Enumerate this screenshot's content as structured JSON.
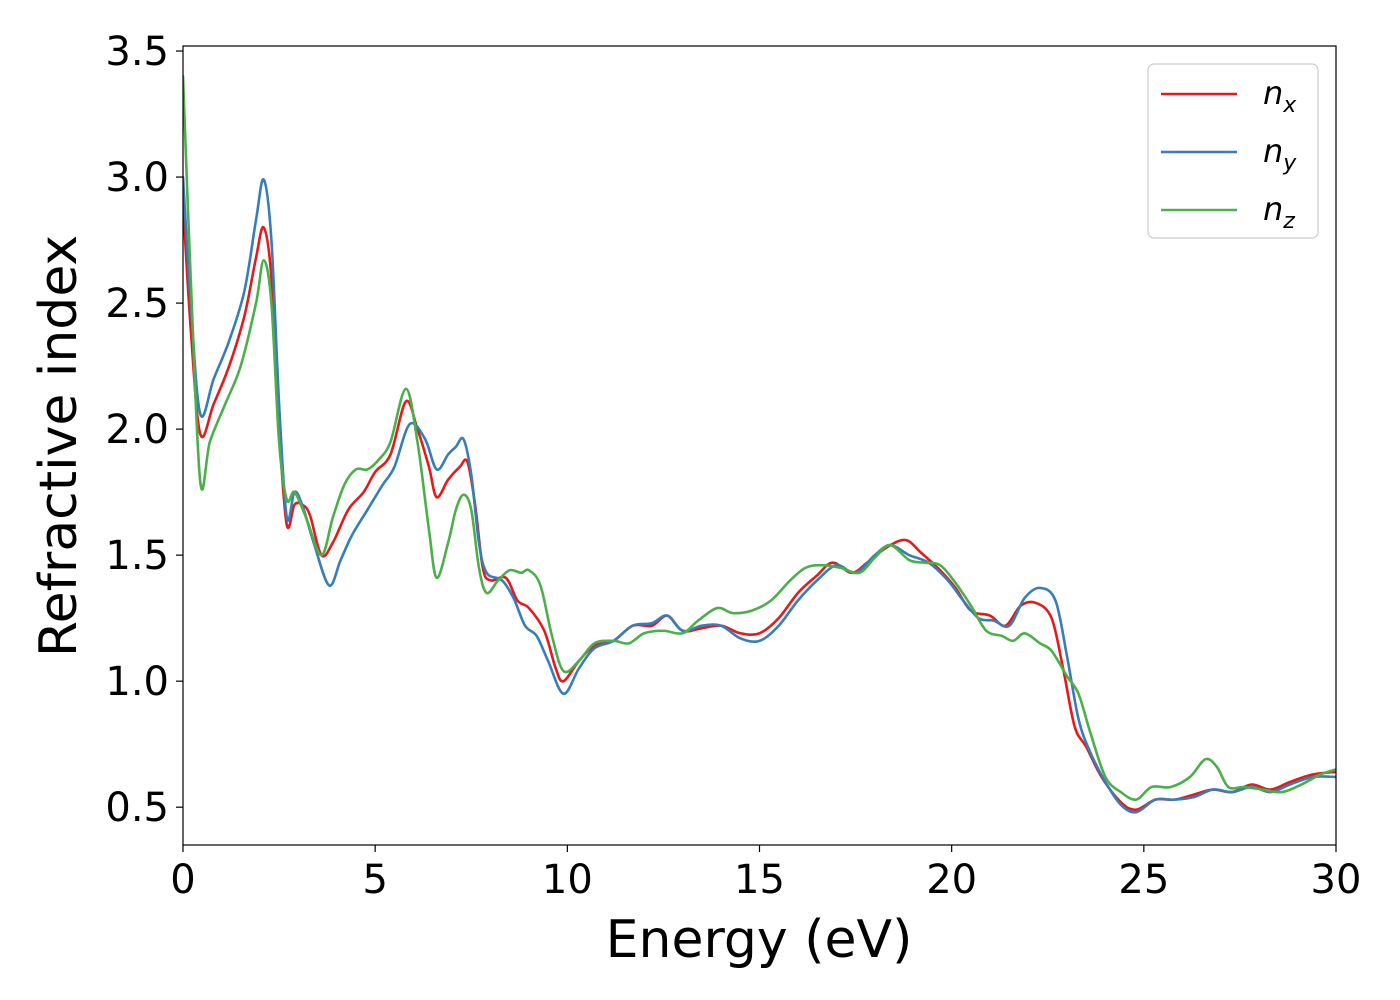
{
  "chart_data": {
    "type": "line",
    "xlabel": "Energy (eV)",
    "ylabel": "Refractive index",
    "xlim": [
      0,
      30
    ],
    "ylim": [
      0.35,
      3.52
    ],
    "xticks": [
      "0",
      "5",
      "10",
      "15",
      "20",
      "25",
      "30"
    ],
    "yticks": [
      "0.5",
      "1.0",
      "1.5",
      "2.0",
      "2.5",
      "3.0",
      "3.5"
    ],
    "grid": false,
    "legend_position": "top-right",
    "series": [
      {
        "name": "n_x",
        "label_main": "n",
        "label_sub": "x",
        "color": "#e41a1c",
        "points": [
          [
            0,
            2.9
          ],
          [
            0.2,
            2.4
          ],
          [
            0.45,
            1.98
          ],
          [
            0.8,
            2.1
          ],
          [
            1.2,
            2.25
          ],
          [
            1.6,
            2.45
          ],
          [
            1.9,
            2.68
          ],
          [
            2.1,
            2.8
          ],
          [
            2.3,
            2.6
          ],
          [
            2.5,
            2.0
          ],
          [
            2.7,
            1.62
          ],
          [
            2.9,
            1.7
          ],
          [
            3.1,
            1.7
          ],
          [
            3.3,
            1.66
          ],
          [
            3.6,
            1.5
          ],
          [
            3.9,
            1.55
          ],
          [
            4.3,
            1.68
          ],
          [
            4.7,
            1.75
          ],
          [
            5.0,
            1.83
          ],
          [
            5.4,
            1.9
          ],
          [
            5.8,
            2.11
          ],
          [
            6.1,
            2.0
          ],
          [
            6.4,
            1.85
          ],
          [
            6.6,
            1.73
          ],
          [
            6.9,
            1.8
          ],
          [
            7.2,
            1.85
          ],
          [
            7.4,
            1.87
          ],
          [
            7.6,
            1.7
          ],
          [
            7.8,
            1.45
          ],
          [
            8.0,
            1.4
          ],
          [
            8.4,
            1.41
          ],
          [
            8.7,
            1.32
          ],
          [
            9.0,
            1.29
          ],
          [
            9.4,
            1.2
          ],
          [
            9.7,
            1.05
          ],
          [
            9.9,
            1.0
          ],
          [
            10.3,
            1.08
          ],
          [
            10.7,
            1.14
          ],
          [
            11.2,
            1.16
          ],
          [
            11.7,
            1.22
          ],
          [
            12.2,
            1.22
          ],
          [
            12.6,
            1.26
          ],
          [
            13.0,
            1.2
          ],
          [
            13.5,
            1.21
          ],
          [
            14.0,
            1.22
          ],
          [
            14.5,
            1.19
          ],
          [
            15.0,
            1.19
          ],
          [
            15.5,
            1.25
          ],
          [
            16.0,
            1.35
          ],
          [
            16.5,
            1.42
          ],
          [
            16.9,
            1.47
          ],
          [
            17.4,
            1.43
          ],
          [
            17.8,
            1.47
          ],
          [
            18.3,
            1.53
          ],
          [
            18.8,
            1.56
          ],
          [
            19.2,
            1.51
          ],
          [
            19.7,
            1.44
          ],
          [
            20.1,
            1.37
          ],
          [
            20.5,
            1.28
          ],
          [
            21.0,
            1.26
          ],
          [
            21.4,
            1.22
          ],
          [
            21.8,
            1.3
          ],
          [
            22.2,
            1.31
          ],
          [
            22.6,
            1.25
          ],
          [
            22.9,
            1.05
          ],
          [
            23.2,
            0.82
          ],
          [
            23.5,
            0.74
          ],
          [
            23.9,
            0.62
          ],
          [
            24.4,
            0.52
          ],
          [
            24.8,
            0.49
          ],
          [
            25.3,
            0.53
          ],
          [
            25.8,
            0.53
          ],
          [
            26.3,
            0.55
          ],
          [
            26.8,
            0.57
          ],
          [
            27.3,
            0.56
          ],
          [
            27.8,
            0.59
          ],
          [
            28.3,
            0.57
          ],
          [
            28.8,
            0.6
          ],
          [
            29.4,
            0.63
          ],
          [
            30,
            0.64
          ]
        ]
      },
      {
        "name": "n_y",
        "label_main": "n",
        "label_sub": "y",
        "color": "#377eb8",
        "points": [
          [
            0,
            3.0
          ],
          [
            0.2,
            2.5
          ],
          [
            0.45,
            2.06
          ],
          [
            0.8,
            2.2
          ],
          [
            1.2,
            2.35
          ],
          [
            1.6,
            2.55
          ],
          [
            1.9,
            2.83
          ],
          [
            2.1,
            2.99
          ],
          [
            2.3,
            2.75
          ],
          [
            2.5,
            2.1
          ],
          [
            2.7,
            1.65
          ],
          [
            2.9,
            1.75
          ],
          [
            3.1,
            1.7
          ],
          [
            3.4,
            1.55
          ],
          [
            3.8,
            1.38
          ],
          [
            4.1,
            1.48
          ],
          [
            4.4,
            1.58
          ],
          [
            4.8,
            1.68
          ],
          [
            5.2,
            1.78
          ],
          [
            5.5,
            1.85
          ],
          [
            5.9,
            2.02
          ],
          [
            6.3,
            1.96
          ],
          [
            6.6,
            1.84
          ],
          [
            6.9,
            1.9
          ],
          [
            7.1,
            1.93
          ],
          [
            7.3,
            1.96
          ],
          [
            7.5,
            1.82
          ],
          [
            7.7,
            1.55
          ],
          [
            7.9,
            1.43
          ],
          [
            8.3,
            1.4
          ],
          [
            8.6,
            1.33
          ],
          [
            8.9,
            1.22
          ],
          [
            9.2,
            1.18
          ],
          [
            9.5,
            1.08
          ],
          [
            9.9,
            0.95
          ],
          [
            10.3,
            1.05
          ],
          [
            10.7,
            1.13
          ],
          [
            11.2,
            1.16
          ],
          [
            11.7,
            1.22
          ],
          [
            12.2,
            1.23
          ],
          [
            12.6,
            1.26
          ],
          [
            13.0,
            1.2
          ],
          [
            13.5,
            1.22
          ],
          [
            14.0,
            1.22
          ],
          [
            14.5,
            1.17
          ],
          [
            15.0,
            1.16
          ],
          [
            15.5,
            1.22
          ],
          [
            16.0,
            1.32
          ],
          [
            16.5,
            1.4
          ],
          [
            17.0,
            1.46
          ],
          [
            17.5,
            1.43
          ],
          [
            18.0,
            1.5
          ],
          [
            18.4,
            1.54
          ],
          [
            18.9,
            1.5
          ],
          [
            19.4,
            1.47
          ],
          [
            19.9,
            1.4
          ],
          [
            20.3,
            1.32
          ],
          [
            20.7,
            1.25
          ],
          [
            21.1,
            1.24
          ],
          [
            21.5,
            1.22
          ],
          [
            21.9,
            1.33
          ],
          [
            22.3,
            1.37
          ],
          [
            22.7,
            1.32
          ],
          [
            23.0,
            1.1
          ],
          [
            23.3,
            0.85
          ],
          [
            23.6,
            0.72
          ],
          [
            24.0,
            0.6
          ],
          [
            24.4,
            0.51
          ],
          [
            24.8,
            0.48
          ],
          [
            25.3,
            0.53
          ],
          [
            25.8,
            0.53
          ],
          [
            26.3,
            0.54
          ],
          [
            26.8,
            0.57
          ],
          [
            27.3,
            0.56
          ],
          [
            27.8,
            0.58
          ],
          [
            28.3,
            0.56
          ],
          [
            28.8,
            0.59
          ],
          [
            29.4,
            0.62
          ],
          [
            30,
            0.62
          ]
        ]
      },
      {
        "name": "n_z",
        "label_main": "n",
        "label_sub": "z",
        "color": "#4daf4a",
        "points": [
          [
            0,
            3.4
          ],
          [
            0.2,
            2.6
          ],
          [
            0.45,
            1.79
          ],
          [
            0.7,
            1.95
          ],
          [
            1.1,
            2.1
          ],
          [
            1.5,
            2.25
          ],
          [
            1.9,
            2.5
          ],
          [
            2.1,
            2.67
          ],
          [
            2.3,
            2.5
          ],
          [
            2.5,
            1.95
          ],
          [
            2.7,
            1.72
          ],
          [
            2.9,
            1.75
          ],
          [
            3.2,
            1.65
          ],
          [
            3.6,
            1.5
          ],
          [
            3.9,
            1.65
          ],
          [
            4.2,
            1.78
          ],
          [
            4.5,
            1.84
          ],
          [
            4.8,
            1.84
          ],
          [
            5.1,
            1.88
          ],
          [
            5.4,
            1.95
          ],
          [
            5.8,
            2.16
          ],
          [
            6.1,
            1.95
          ],
          [
            6.4,
            1.6
          ],
          [
            6.6,
            1.41
          ],
          [
            6.9,
            1.55
          ],
          [
            7.1,
            1.68
          ],
          [
            7.3,
            1.74
          ],
          [
            7.5,
            1.68
          ],
          [
            7.7,
            1.45
          ],
          [
            7.9,
            1.35
          ],
          [
            8.2,
            1.4
          ],
          [
            8.5,
            1.44
          ],
          [
            8.8,
            1.43
          ],
          [
            9.0,
            1.44
          ],
          [
            9.3,
            1.38
          ],
          [
            9.6,
            1.18
          ],
          [
            9.9,
            1.04
          ],
          [
            10.3,
            1.08
          ],
          [
            10.7,
            1.15
          ],
          [
            11.2,
            1.16
          ],
          [
            11.6,
            1.15
          ],
          [
            12.0,
            1.19
          ],
          [
            12.5,
            1.2
          ],
          [
            13.0,
            1.19
          ],
          [
            13.4,
            1.24
          ],
          [
            13.9,
            1.29
          ],
          [
            14.3,
            1.27
          ],
          [
            14.8,
            1.28
          ],
          [
            15.3,
            1.32
          ],
          [
            15.8,
            1.4
          ],
          [
            16.2,
            1.45
          ],
          [
            16.6,
            1.46
          ],
          [
            17.1,
            1.45
          ],
          [
            17.6,
            1.43
          ],
          [
            18.0,
            1.49
          ],
          [
            18.4,
            1.54
          ],
          [
            18.9,
            1.48
          ],
          [
            19.3,
            1.47
          ],
          [
            19.7,
            1.46
          ],
          [
            20.1,
            1.39
          ],
          [
            20.5,
            1.3
          ],
          [
            20.9,
            1.2
          ],
          [
            21.3,
            1.18
          ],
          [
            21.6,
            1.16
          ],
          [
            21.9,
            1.19
          ],
          [
            22.3,
            1.15
          ],
          [
            22.6,
            1.12
          ],
          [
            23.0,
            1.02
          ],
          [
            23.3,
            0.95
          ],
          [
            23.6,
            0.8
          ],
          [
            24.0,
            0.62
          ],
          [
            24.4,
            0.56
          ],
          [
            24.8,
            0.53
          ],
          [
            25.2,
            0.58
          ],
          [
            25.7,
            0.58
          ],
          [
            26.2,
            0.62
          ],
          [
            26.6,
            0.69
          ],
          [
            26.9,
            0.66
          ],
          [
            27.2,
            0.58
          ],
          [
            27.6,
            0.58
          ],
          [
            28.1,
            0.57
          ],
          [
            28.6,
            0.56
          ],
          [
            29.1,
            0.59
          ],
          [
            29.6,
            0.63
          ],
          [
            30,
            0.65
          ]
        ]
      }
    ]
  }
}
